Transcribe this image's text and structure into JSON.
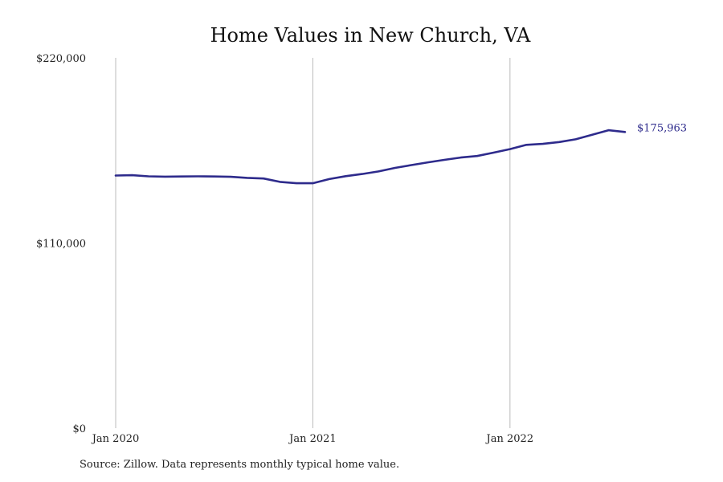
{
  "chart_data": {
    "type": "line",
    "title": "Home Values in New Church, VA",
    "xlabel": "",
    "ylabel": "",
    "ylim": [
      0,
      220000
    ],
    "y_ticks": [
      {
        "value": 0,
        "label": "$0"
      },
      {
        "value": 110000,
        "label": "$110,000"
      },
      {
        "value": 220000,
        "label": "$220,000"
      }
    ],
    "x_ticks": [
      {
        "date": "2020-01",
        "label": "Jan 2020"
      },
      {
        "date": "2021-01",
        "label": "Jan 2021"
      },
      {
        "date": "2022-01",
        "label": "Jan 2022"
      }
    ],
    "xlim": [
      "2020-01",
      "2022-08"
    ],
    "grid": "vertical",
    "legend": "none",
    "line_color": "#2e2b8c",
    "end_label": "$175,963",
    "series": [
      {
        "x": [
          "2020-01",
          "2020-02",
          "2020-03",
          "2020-04",
          "2020-05",
          "2020-06",
          "2020-07",
          "2020-08",
          "2020-09",
          "2020-10",
          "2020-11",
          "2020-12",
          "2021-01",
          "2021-02",
          "2021-03",
          "2021-04",
          "2021-05",
          "2021-06",
          "2021-07",
          "2021-08",
          "2021-09",
          "2021-10",
          "2021-11",
          "2021-12",
          "2022-01",
          "2022-02",
          "2022-03",
          "2022-04",
          "2022-05",
          "2022-06",
          "2022-07",
          "2022-08"
        ],
        "values": [
          150100,
          150300,
          149600,
          149400,
          149500,
          149600,
          149500,
          149300,
          148700,
          148300,
          146300,
          145500,
          145500,
          148000,
          149700,
          151000,
          152500,
          154600,
          156300,
          157900,
          159400,
          160800,
          161700,
          163700,
          165800,
          168300,
          168900,
          170000,
          171600,
          174300,
          177000,
          175963
        ]
      }
    ]
  },
  "source_text": "Source: Zillow. Data represents monthly typical home value."
}
